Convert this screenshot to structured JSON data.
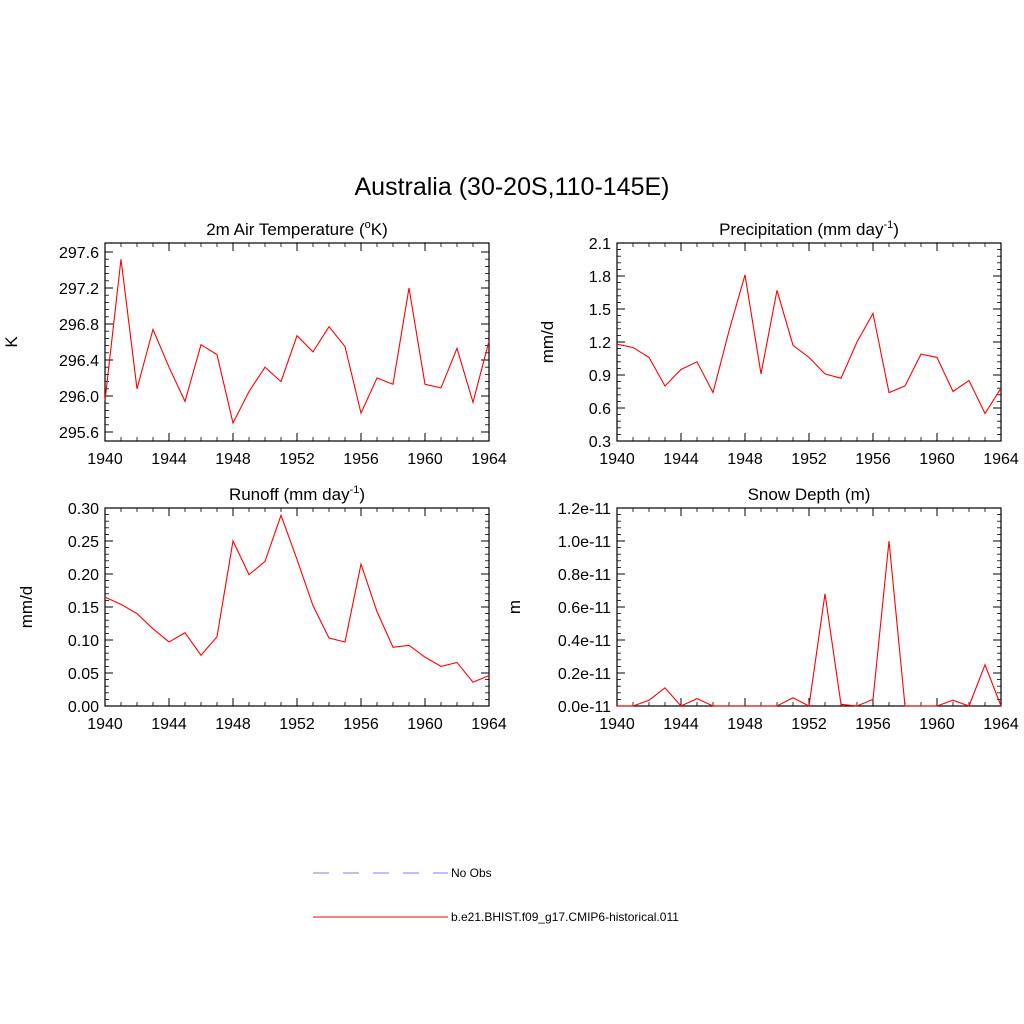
{
  "figure": {
    "title": "Australia (30-20S,110-145E)"
  },
  "colors": {
    "model": "#ff0000",
    "obs": "#9999ff",
    "axis": "#000000"
  },
  "legend": {
    "placement": "bottom-center",
    "entries": [
      {
        "label": "No Obs",
        "style": "dashed",
        "color": "#9999ff"
      },
      {
        "label": "b.e21.BHIST.f09_g17.CMIP6-historical.011",
        "style": "solid",
        "color": "#ff0000"
      }
    ]
  },
  "chart_data": [
    {
      "type": "line",
      "title": {
        "main": "2m Air Temperature (",
        "sup": "o",
        "after": "K)"
      },
      "xlabel": "",
      "ylabel": "K",
      "x": [
        1940,
        1941,
        1942,
        1943,
        1944,
        1945,
        1946,
        1947,
        1948,
        1949,
        1950,
        1951,
        1952,
        1953,
        1954,
        1955,
        1956,
        1957,
        1958,
        1959,
        1960,
        1961,
        1962,
        1963,
        1964
      ],
      "series": [
        {
          "name": "b.e21.BHIST.f09_g17.CMIP6-historical.011",
          "values": [
            295.95,
            297.52,
            296.08,
            296.74,
            296.32,
            295.94,
            296.57,
            296.46,
            295.7,
            296.05,
            296.32,
            296.16,
            296.67,
            296.49,
            296.77,
            296.55,
            295.81,
            296.2,
            296.13,
            297.2,
            296.13,
            296.09,
            296.53,
            295.93,
            296.61
          ]
        }
      ],
      "xlim": [
        1940,
        1964
      ],
      "ylim": [
        295.5,
        297.7
      ],
      "xticks": [
        1940,
        1944,
        1948,
        1952,
        1956,
        1960,
        1964
      ],
      "xtick_labels": [
        "1940",
        "1944",
        "1948",
        "1952",
        "1956",
        "1960",
        "1964"
      ],
      "yticks": [
        295.6,
        296.0,
        296.4,
        296.8,
        297.2,
        297.6
      ],
      "ytick_labels": [
        "295.6",
        "296.0",
        "296.4",
        "296.8",
        "297.2",
        "297.6"
      ],
      "grid": false
    },
    {
      "type": "line",
      "title": {
        "main": "Precipitation (mm day",
        "sup": "-1",
        "after": ")"
      },
      "xlabel": "",
      "ylabel": "mm/d",
      "x": [
        1940,
        1941,
        1942,
        1943,
        1944,
        1945,
        1946,
        1947,
        1948,
        1949,
        1950,
        1951,
        1952,
        1953,
        1954,
        1955,
        1956,
        1957,
        1958,
        1959,
        1960,
        1961,
        1962,
        1963,
        1964
      ],
      "series": [
        {
          "name": "b.e21.BHIST.f09_g17.CMIP6-historical.011",
          "values": [
            1.18,
            1.15,
            1.06,
            0.8,
            0.95,
            1.02,
            0.74,
            1.3,
            1.81,
            0.91,
            1.67,
            1.17,
            1.06,
            0.91,
            0.87,
            1.2,
            1.46,
            0.74,
            0.8,
            1.09,
            1.06,
            0.75,
            0.85,
            0.55,
            0.78
          ]
        }
      ],
      "xlim": [
        1940,
        1964
      ],
      "ylim": [
        0.3,
        2.1
      ],
      "xticks": [
        1940,
        1944,
        1948,
        1952,
        1956,
        1960,
        1964
      ],
      "xtick_labels": [
        "1940",
        "1944",
        "1948",
        "1952",
        "1956",
        "1960",
        "1964"
      ],
      "yticks": [
        0.3,
        0.6,
        0.9,
        1.2,
        1.5,
        1.8,
        2.1
      ],
      "ytick_labels": [
        "0.3",
        "0.6",
        "0.9",
        "1.2",
        "1.5",
        "1.8",
        "2.1"
      ],
      "grid": false
    },
    {
      "type": "line",
      "title": {
        "main": "Runoff (mm day",
        "sup": "-1",
        "after": ")"
      },
      "xlabel": "",
      "ylabel": "mm/d",
      "x": [
        1940,
        1941,
        1942,
        1943,
        1944,
        1945,
        1946,
        1947,
        1948,
        1949,
        1950,
        1951,
        1952,
        1953,
        1954,
        1955,
        1956,
        1957,
        1958,
        1959,
        1960,
        1961,
        1962,
        1963,
        1964
      ],
      "series": [
        {
          "name": "b.e21.BHIST.f09_g17.CMIP6-historical.011",
          "values": [
            0.165,
            0.154,
            0.14,
            0.117,
            0.097,
            0.111,
            0.077,
            0.105,
            0.25,
            0.199,
            0.219,
            0.289,
            0.222,
            0.152,
            0.103,
            0.097,
            0.215,
            0.143,
            0.089,
            0.092,
            0.074,
            0.06,
            0.066,
            0.036,
            0.046
          ]
        }
      ],
      "xlim": [
        1940,
        1964
      ],
      "ylim": [
        0.0,
        0.3
      ],
      "xticks": [
        1940,
        1944,
        1948,
        1952,
        1956,
        1960,
        1964
      ],
      "xtick_labels": [
        "1940",
        "1944",
        "1948",
        "1952",
        "1956",
        "1960",
        "1964"
      ],
      "yticks": [
        0.0,
        0.05,
        0.1,
        0.15,
        0.2,
        0.25,
        0.3
      ],
      "ytick_labels": [
        "0.00",
        "0.05",
        "0.10",
        "0.15",
        "0.20",
        "0.25",
        "0.30"
      ],
      "grid": false
    },
    {
      "type": "line",
      "title": {
        "main": "Snow Depth (m)",
        "sup": "",
        "after": ""
      },
      "xlabel": "",
      "ylabel": "m",
      "x": [
        1940,
        1941,
        1942,
        1943,
        1944,
        1945,
        1946,
        1947,
        1948,
        1949,
        1950,
        1951,
        1952,
        1953,
        1954,
        1955,
        1956,
        1957,
        1958,
        1959,
        1960,
        1961,
        1962,
        1963,
        1964
      ],
      "series": [
        {
          "name": "b.e21.BHIST.f09_g17.CMIP6-historical.011",
          "values": [
            0,
            0,
            3.5e-13,
            1.1e-12,
            0,
            4.5e-13,
            0,
            0,
            0,
            0,
            0,
            5e-13,
            0,
            6.8e-12,
            1e-13,
            0,
            4e-13,
            1e-11,
            0,
            0,
            0,
            3.5e-13,
            0,
            2.5e-12,
            0
          ]
        }
      ],
      "xlim": [
        1940,
        1964
      ],
      "ylim": [
        0.0,
        1.2e-11
      ],
      "xticks": [
        1940,
        1944,
        1948,
        1952,
        1956,
        1960,
        1964
      ],
      "xtick_labels": [
        "1940",
        "1944",
        "1948",
        "1952",
        "1956",
        "1960",
        "1964"
      ],
      "yticks": [
        0,
        2e-12,
        4e-12,
        6e-12,
        8e-12,
        1e-11,
        1.2e-11
      ],
      "ytick_labels": [
        "0.0e-11",
        "0.2e-11",
        "0.4e-11",
        "0.6e-11",
        "0.8e-11",
        "1.0e-11",
        "1.2e-11"
      ],
      "grid": false
    }
  ]
}
